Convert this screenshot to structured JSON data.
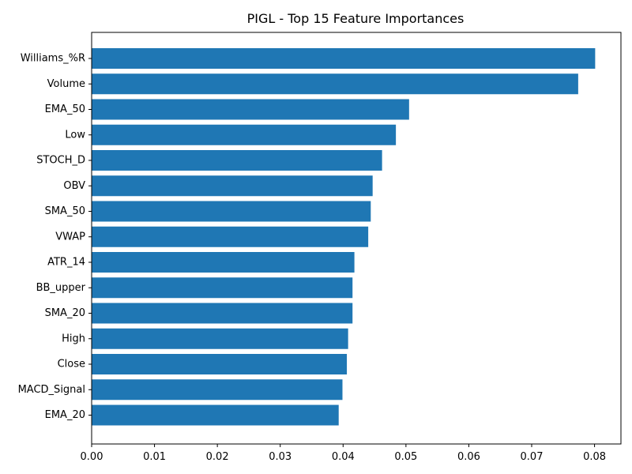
{
  "chart_data": {
    "type": "bar",
    "orientation": "horizontal",
    "title": "PIGL - Top 15 Feature Importances",
    "xlabel": "",
    "ylabel": "",
    "categories": [
      "Williams_%R",
      "Volume",
      "EMA_50",
      "Low",
      "STOCH_D",
      "OBV",
      "SMA_50",
      "VWAP",
      "ATR_14",
      "BB_upper",
      "SMA_20",
      "High",
      "Close",
      "MACD_Signal",
      "EMA_20"
    ],
    "values": [
      0.0801,
      0.0774,
      0.0505,
      0.0484,
      0.0462,
      0.0447,
      0.0444,
      0.044,
      0.0418,
      0.0415,
      0.0415,
      0.0408,
      0.0406,
      0.0399,
      0.0393
    ],
    "xlim": [
      0.0,
      0.0842
    ],
    "xticks": [
      "0.00",
      "0.01",
      "0.02",
      "0.03",
      "0.04",
      "0.05",
      "0.06",
      "0.07",
      "0.08"
    ],
    "bar_color": "#1f77b4",
    "grid": false
  }
}
